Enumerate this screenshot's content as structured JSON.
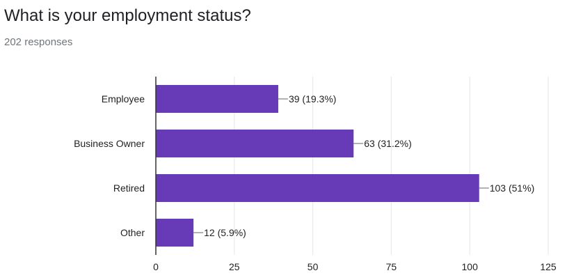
{
  "header": {
    "title": "What is your employment status?",
    "responses": "202 responses"
  },
  "colors": {
    "bar": "#673ab7",
    "grid": "#e6e6e6",
    "axis": "#333333",
    "text": "#222222"
  },
  "chart_data": {
    "type": "bar",
    "orientation": "horizontal",
    "categories": [
      "Employee",
      "Business Owner",
      "Retired",
      "Other"
    ],
    "values": [
      39,
      63,
      103,
      12
    ],
    "data_labels": [
      "39 (19.3%)",
      "63 (31.2%)",
      "103 (51%)",
      "12 (5.9%)"
    ],
    "xlim": [
      0,
      125
    ],
    "xticks": [
      0,
      25,
      50,
      75,
      100,
      125
    ],
    "grid": true
  }
}
